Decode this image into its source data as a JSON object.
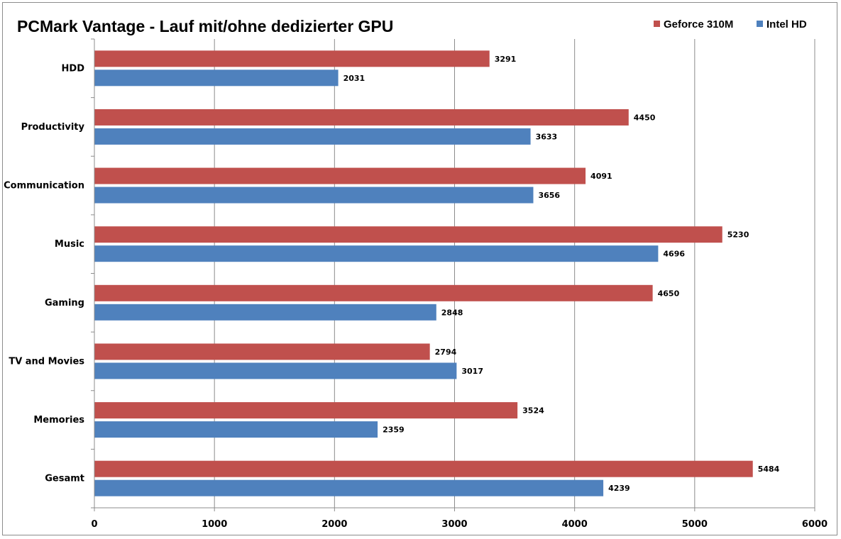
{
  "chart_data": {
    "type": "bar",
    "orientation": "horizontal",
    "title": "PCMark Vantage - Lauf mit/ohne dedizierter GPU",
    "categories": [
      "HDD",
      "Productivity",
      "Communication",
      "Music",
      "Gaming",
      "TV and Movies",
      "Memories",
      "Gesamt"
    ],
    "series": [
      {
        "name": "Geforce 310M",
        "color": "#c0504d",
        "values": [
          3291,
          4450,
          4091,
          5230,
          4650,
          2794,
          3524,
          5484
        ]
      },
      {
        "name": "Intel HD",
        "color": "#4f81bd",
        "values": [
          2031,
          3633,
          3656,
          4696,
          2848,
          3017,
          2359,
          4239
        ]
      }
    ],
    "xlim": [
      0,
      6000
    ],
    "xticks": [
      0,
      1000,
      2000,
      3000,
      4000,
      5000,
      6000
    ],
    "grid": true,
    "legend": "top-right",
    "data_labels": true
  }
}
